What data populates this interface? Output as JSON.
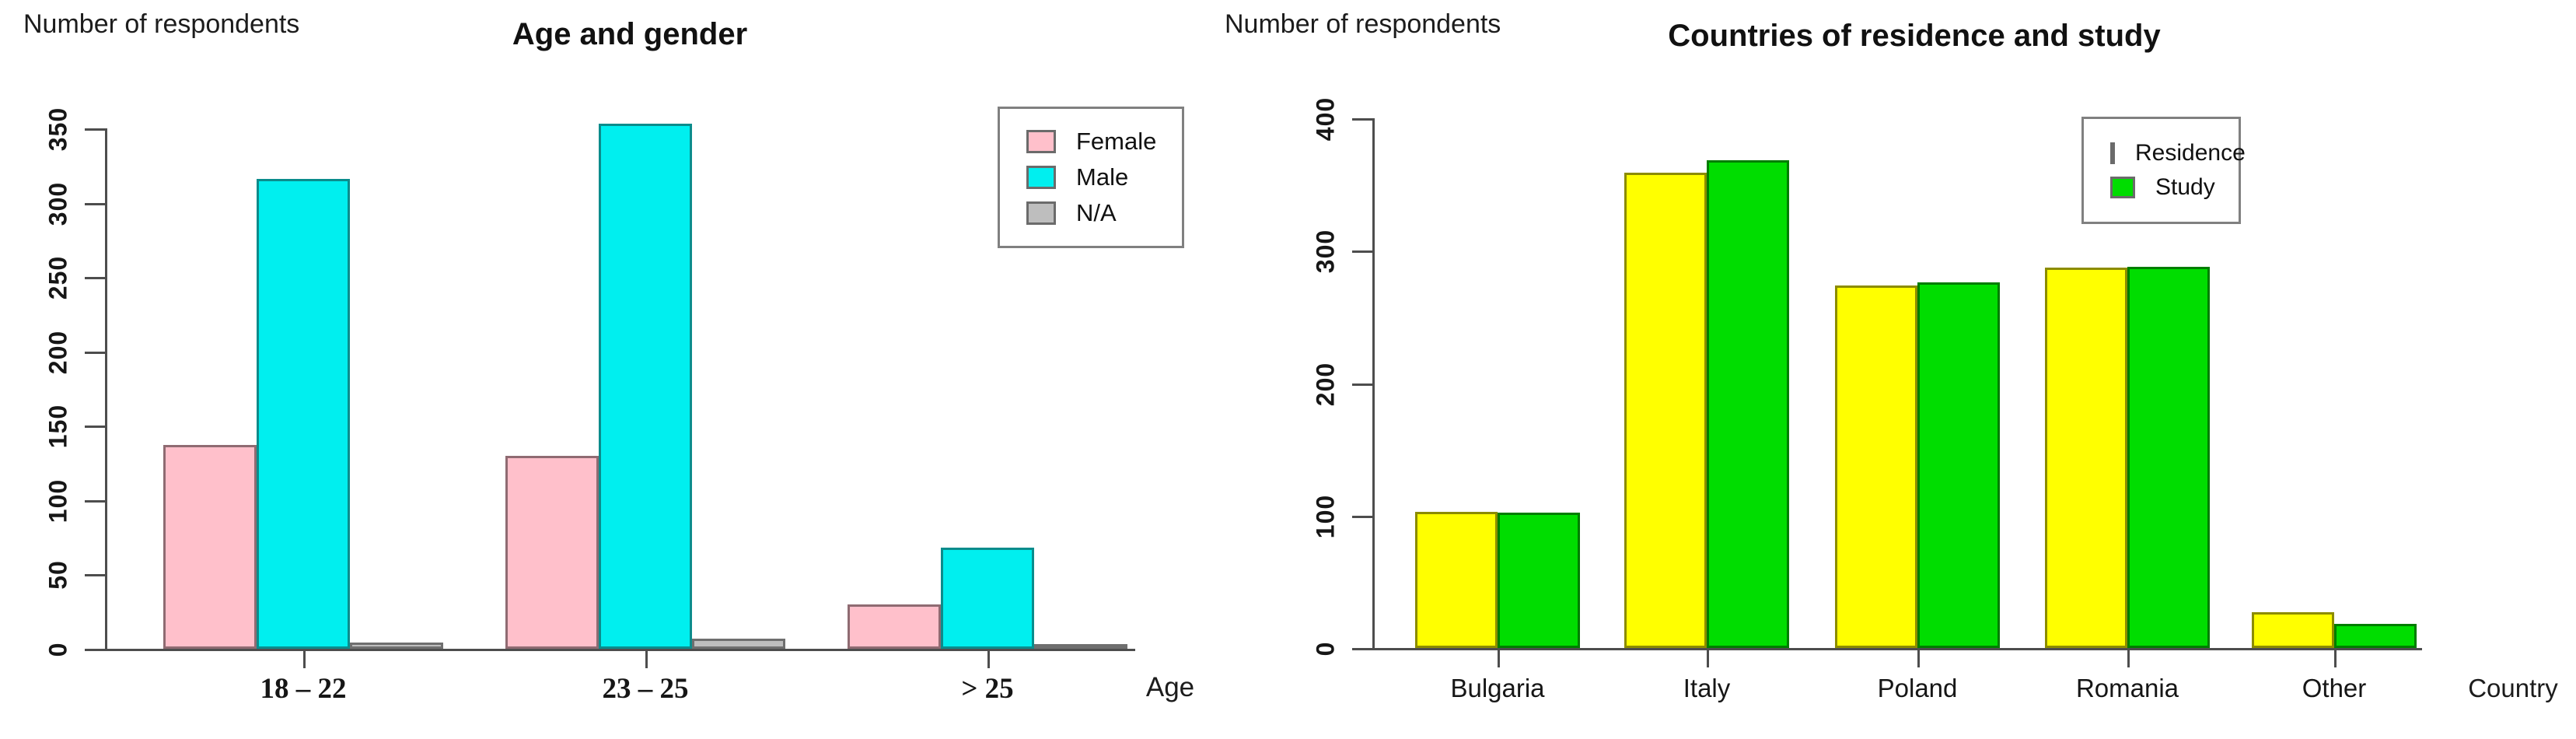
{
  "figure": {
    "background": "#ffffff",
    "description": "Two side-by-side bar charts from a survey report"
  },
  "chart_data": [
    {
      "id": "age-gender",
      "type": "bar",
      "title": "Age and gender",
      "y_axis_title": "Number of respondents",
      "x_axis_title": "Age",
      "categories": [
        "18 – 22",
        "23 – 25",
        "> 25"
      ],
      "series": [
        {
          "name": "Female",
          "color": "#ffc0cb",
          "border": "#8f6b72",
          "values": [
            137,
            130,
            30
          ]
        },
        {
          "name": "Male",
          "color": "#00efef",
          "border": "#0b8c8c",
          "values": [
            316,
            353,
            68
          ]
        },
        {
          "name": "N/A",
          "color": "#bebebe",
          "border": "#6f6f6f",
          "values": [
            4,
            7,
            3
          ]
        }
      ],
      "ylim": [
        0,
        350
      ],
      "ytick_step": 50,
      "ytick_labels": [
        "0",
        "50",
        "100",
        "150",
        "200",
        "250",
        "300",
        "350"
      ],
      "legend": {
        "entries": [
          "Female",
          "Male",
          "N/A"
        ],
        "position": "top-right"
      },
      "grid": false
    },
    {
      "id": "countries-residence-study",
      "type": "bar",
      "title": "Countries of residence and study",
      "y_axis_title": "Number of respondents",
      "x_axis_title": "Country",
      "categories": [
        "Bulgaria",
        "Italy",
        "Poland",
        "Romania",
        "Other"
      ],
      "series": [
        {
          "name": "Residence",
          "color": "#ffff00",
          "border": "#8c8c00",
          "values": [
            103,
            359,
            274,
            287,
            27
          ]
        },
        {
          "name": "Study",
          "color": "#00dd00",
          "border": "#007d00",
          "values": [
            102,
            368,
            276,
            288,
            18
          ]
        }
      ],
      "ylim": [
        0,
        400
      ],
      "ytick_step": 100,
      "ytick_labels": [
        "0",
        "100",
        "200",
        "300",
        "400"
      ],
      "legend": {
        "entries": [
          "Residence",
          "Study"
        ],
        "position": "top-right"
      },
      "grid": false
    }
  ]
}
